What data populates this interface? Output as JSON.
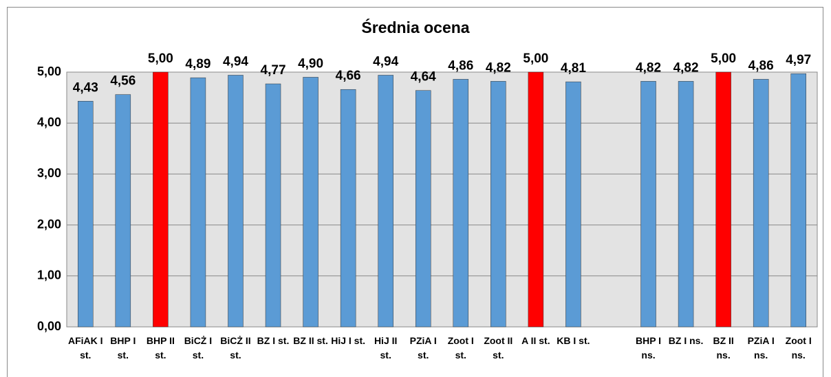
{
  "chart_data": {
    "type": "bar",
    "title": "Średnia ocena",
    "categories": [
      "AFiAK I st.",
      "BHP I st.",
      "BHP II st.",
      "BiCŻ I st.",
      "BiCŻ II st.",
      "BZ I st.",
      "BZ II st.",
      "HiJ I st.",
      "HiJ II st.",
      "PZiA I st.",
      "Zoot I st.",
      "Zoot II st.",
      "A II st.",
      "KB I st.",
      null,
      "BHP I ns.",
      "BZ I ns.",
      "BZ II ns.",
      "PZiA I ns.",
      "Zoot I ns."
    ],
    "values": [
      4.43,
      4.56,
      5.0,
      4.89,
      4.94,
      4.77,
      4.9,
      4.66,
      4.94,
      4.64,
      4.86,
      4.82,
      5.0,
      4.81,
      null,
      4.82,
      4.82,
      5.0,
      4.86,
      4.97
    ],
    "value_labels": [
      "4,43",
      "4,56",
      "5,00",
      "4,89",
      "4,94",
      "4,77",
      "4,90",
      "4,66",
      "4,94",
      "4,64",
      "4,86",
      "4,82",
      "5,00",
      "4,81",
      null,
      "4,82",
      "4,82",
      "5,00",
      "4,86",
      "4,97"
    ],
    "colors": [
      "#5b9bd5",
      "#5b9bd5",
      "#ff0000",
      "#5b9bd5",
      "#5b9bd5",
      "#5b9bd5",
      "#5b9bd5",
      "#5b9bd5",
      "#5b9bd5",
      "#5b9bd5",
      "#5b9bd5",
      "#5b9bd5",
      "#ff0000",
      "#5b9bd5",
      null,
      "#5b9bd5",
      "#5b9bd5",
      "#ff0000",
      "#5b9bd5",
      "#5b9bd5"
    ],
    "ylim": [
      0,
      5
    ],
    "yticks": [
      {
        "value": 0,
        "label": "0,00"
      },
      {
        "value": 1,
        "label": "1,00"
      },
      {
        "value": 2,
        "label": "2,00"
      },
      {
        "value": 3,
        "label": "3,00"
      },
      {
        "value": 4,
        "label": "4,00"
      },
      {
        "value": 5,
        "label": "5,00"
      }
    ],
    "grid": true
  }
}
